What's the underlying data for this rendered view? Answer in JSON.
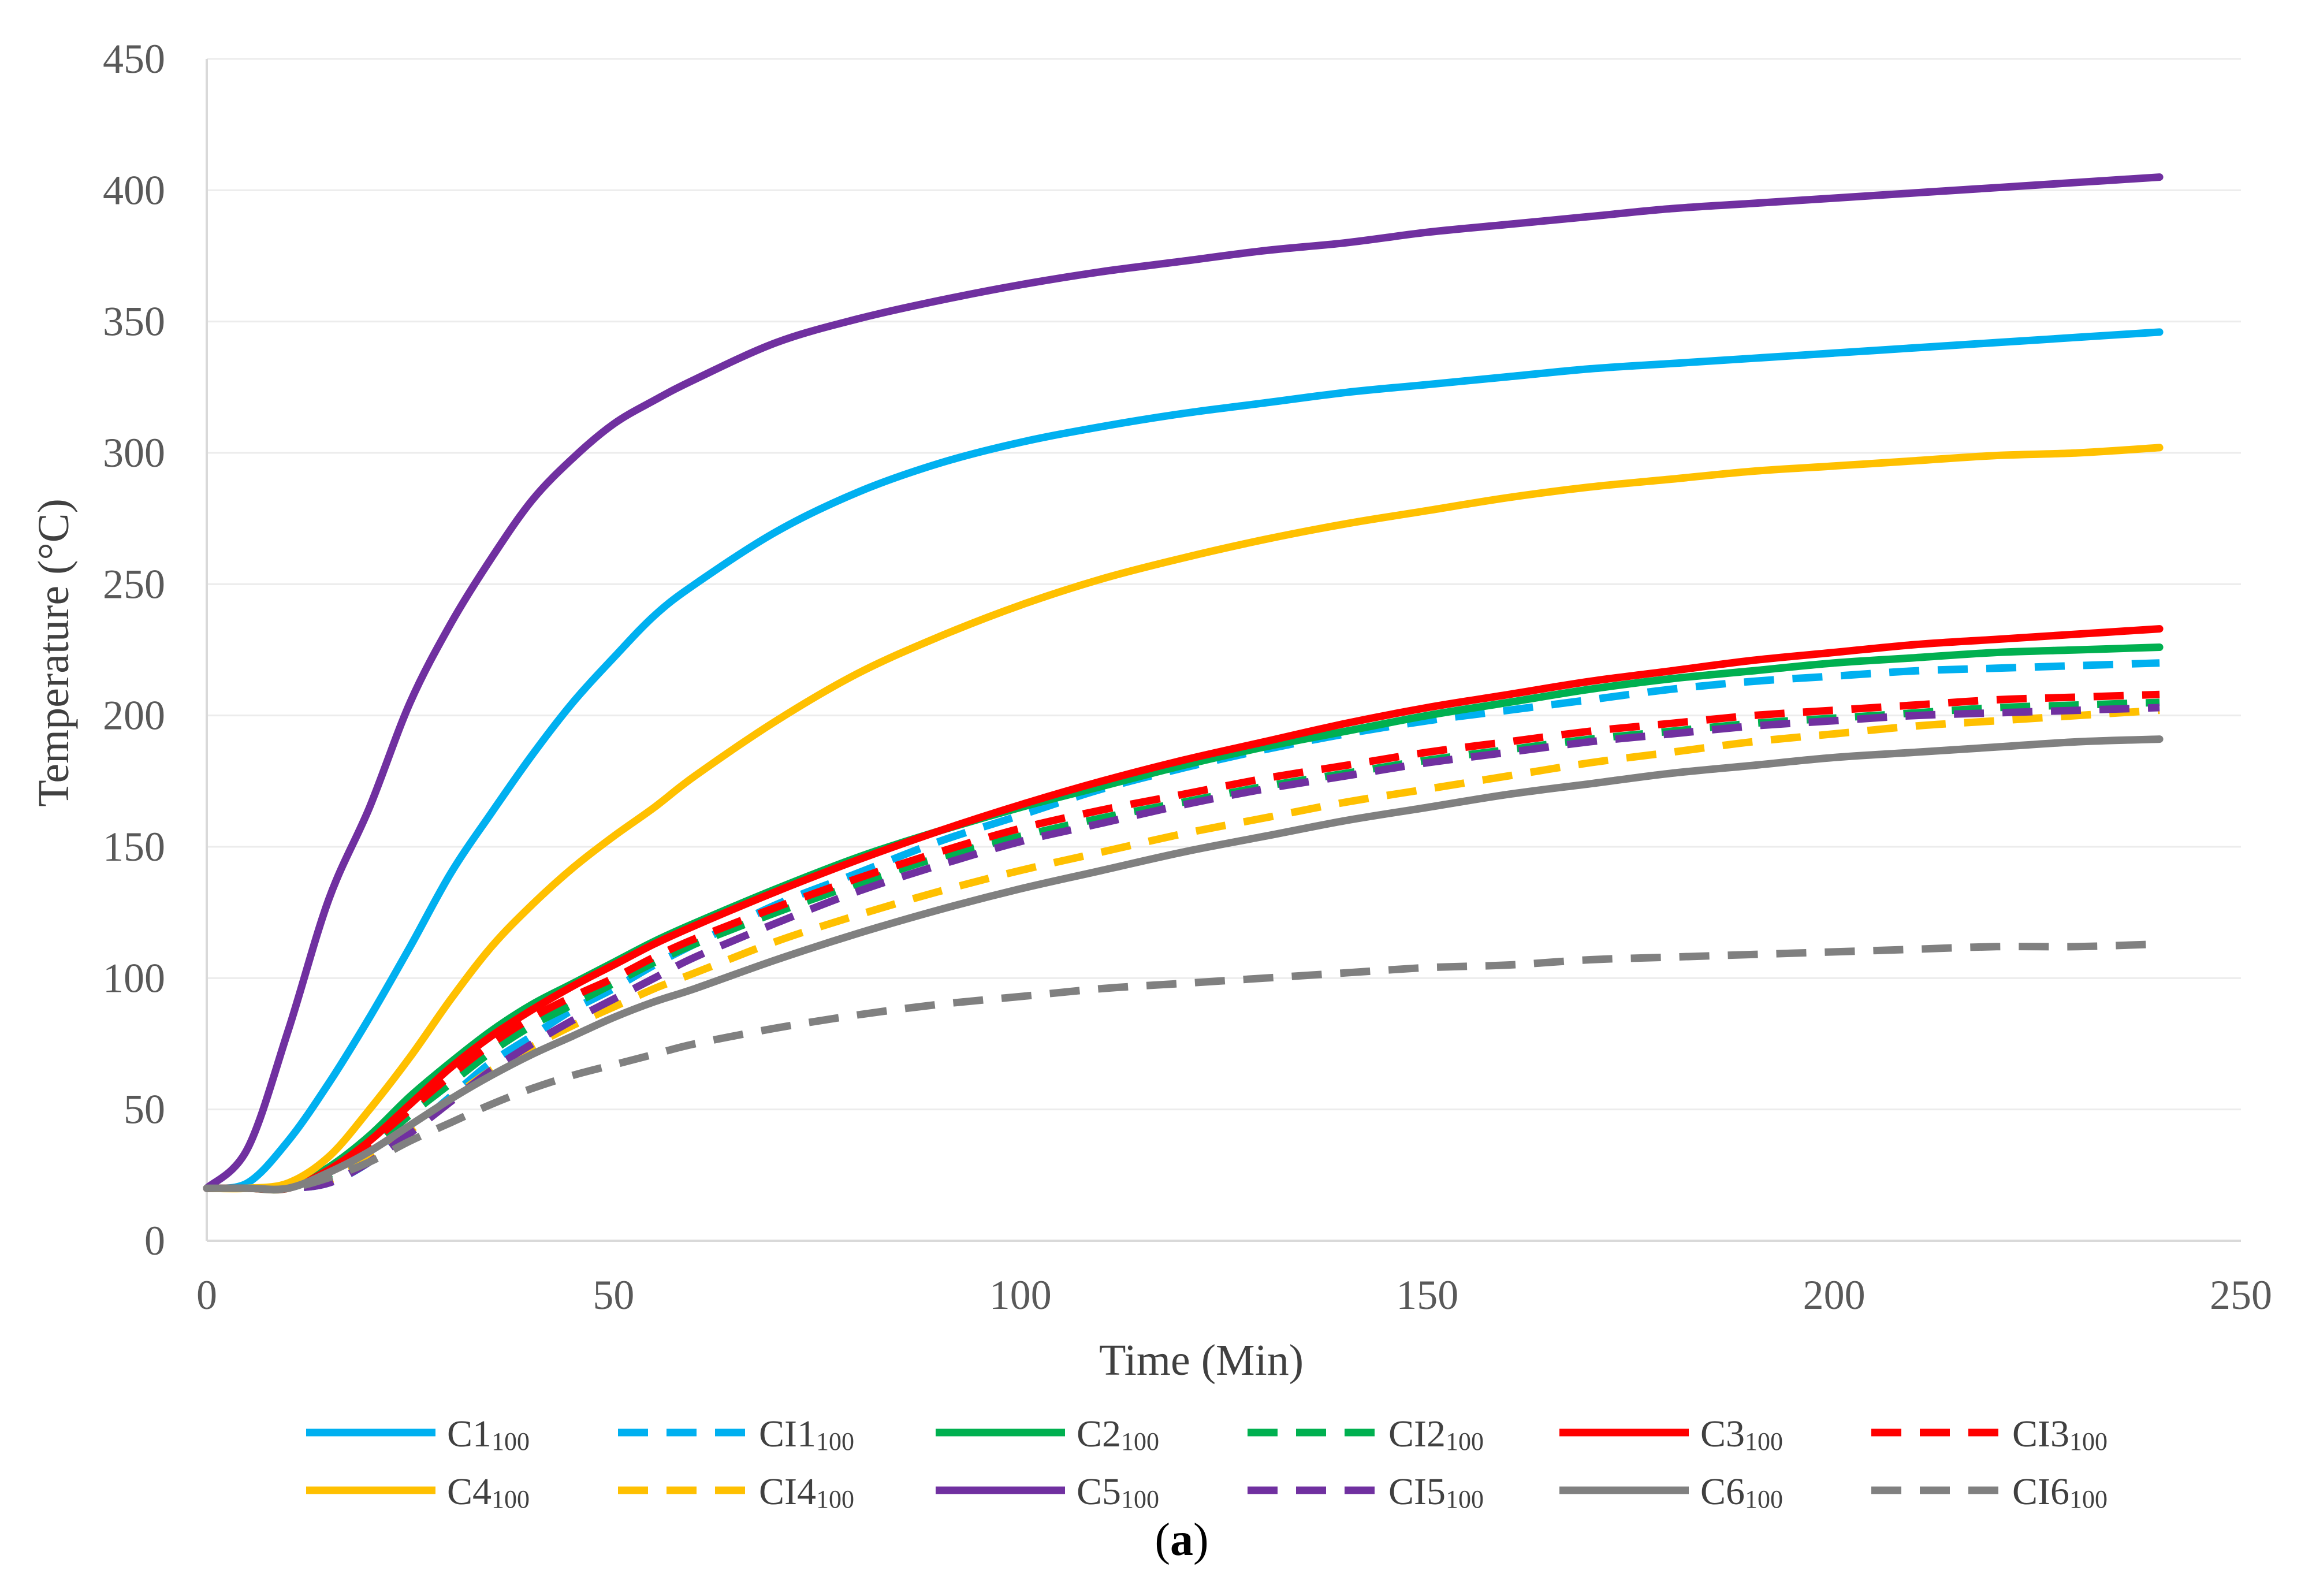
{
  "chart_data": {
    "type": "line",
    "title": "",
    "xlabel": "Time (Min)",
    "ylabel": "Temperature (°C)",
    "xlim": [
      0,
      250
    ],
    "ylim": [
      0,
      450
    ],
    "xticks": [
      0,
      50,
      100,
      150,
      200,
      250
    ],
    "yticks": [
      0,
      50,
      100,
      150,
      200,
      250,
      300,
      350,
      400,
      450
    ],
    "xtick_labels": [
      "0",
      "50",
      "100",
      "150",
      "200",
      "250"
    ],
    "ytick_labels": [
      "0",
      "50",
      "100",
      "150",
      "200",
      "250",
      "300",
      "350",
      "400",
      "450"
    ],
    "grid": true,
    "legend_position": "bottom",
    "caption": {
      "open": "(",
      "letter": "a",
      "close": ")"
    },
    "x": [
      0,
      5,
      10,
      15,
      20,
      25,
      30,
      35,
      40,
      45,
      50,
      55,
      60,
      70,
      80,
      90,
      100,
      110,
      120,
      130,
      140,
      150,
      160,
      170,
      180,
      190,
      200,
      210,
      220,
      230,
      240
    ],
    "series": [
      {
        "name": "C1",
        "sub": "100",
        "color": "#00B0F0",
        "dash": "solid",
        "values": [
          20,
          22,
          38,
          60,
          85,
          112,
          140,
          163,
          185,
          205,
          222,
          238,
          250,
          270,
          285,
          296,
          304,
          310,
          315,
          319,
          323,
          326,
          329,
          332,
          334,
          336,
          338,
          340,
          342,
          344,
          346
        ]
      },
      {
        "name": "CI1",
        "sub": "100",
        "color": "#00B0F0",
        "dash": "dashed",
        "values": [
          20,
          20,
          20,
          22,
          30,
          42,
          55,
          68,
          78,
          88,
          96,
          105,
          113,
          128,
          140,
          152,
          162,
          172,
          180,
          187,
          193,
          198,
          202,
          206,
          210,
          213,
          215,
          217,
          218,
          219,
          220
        ]
      },
      {
        "name": "C2",
        "sub": "100",
        "color": "#00B050",
        "dash": "solid",
        "values": [
          20,
          20,
          20,
          28,
          40,
          55,
          68,
          80,
          90,
          98,
          106,
          114,
          121,
          134,
          146,
          156,
          165,
          173,
          181,
          188,
          194,
          200,
          205,
          210,
          214,
          217,
          220,
          222,
          224,
          225,
          226
        ]
      },
      {
        "name": "CI2",
        "sub": "100",
        "color": "#00B050",
        "dash": "dashed",
        "values": [
          20,
          20,
          20,
          25,
          35,
          48,
          60,
          72,
          82,
          90,
          98,
          106,
          113,
          125,
          136,
          146,
          154,
          161,
          167,
          173,
          178,
          183,
          187,
          191,
          194,
          197,
          199,
          201,
          203,
          204,
          205
        ]
      },
      {
        "name": "C3",
        "sub": "100",
        "color": "#FF0000",
        "dash": "solid",
        "values": [
          20,
          20,
          20,
          27,
          38,
          52,
          66,
          78,
          88,
          97,
          105,
          113,
          120,
          133,
          145,
          156,
          166,
          175,
          183,
          190,
          197,
          203,
          208,
          213,
          217,
          221,
          224,
          227,
          229,
          231,
          233
        ]
      },
      {
        "name": "CI3",
        "sub": "100",
        "color": "#FF0000",
        "dash": "dashed",
        "values": [
          20,
          20,
          20,
          26,
          37,
          50,
          63,
          75,
          85,
          93,
          100,
          108,
          115,
          127,
          138,
          148,
          157,
          164,
          170,
          176,
          181,
          186,
          190,
          194,
          197,
          200,
          202,
          204,
          206,
          207,
          208
        ]
      },
      {
        "name": "C4",
        "sub": "100",
        "color": "#FFC000",
        "dash": "solid",
        "values": [
          20,
          20,
          22,
          32,
          50,
          70,
          92,
          112,
          128,
          142,
          154,
          165,
          177,
          198,
          216,
          230,
          242,
          252,
          260,
          267,
          273,
          278,
          283,
          287,
          290,
          293,
          295,
          297,
          299,
          300,
          302
        ]
      },
      {
        "name": "CI4",
        "sub": "100",
        "color": "#FFC000",
        "dash": "dashed",
        "values": [
          20,
          20,
          20,
          23,
          31,
          42,
          54,
          65,
          74,
          82,
          89,
          96,
          102,
          114,
          124,
          133,
          141,
          148,
          155,
          161,
          167,
          172,
          177,
          182,
          186,
          190,
          193,
          196,
          198,
          200,
          202
        ]
      },
      {
        "name": "C5",
        "sub": "100",
        "color": "#7030A0",
        "dash": "solid",
        "values": [
          20,
          35,
          80,
          130,
          165,
          205,
          235,
          260,
          282,
          298,
          311,
          320,
          328,
          342,
          351,
          358,
          364,
          369,
          373,
          377,
          380,
          384,
          387,
          390,
          393,
          395,
          397,
          399,
          401,
          403,
          405
        ]
      },
      {
        "name": "CI5",
        "sub": "100",
        "color": "#7030A0",
        "dash": "dashed",
        "values": [
          20,
          20,
          20,
          22,
          30,
          41,
          53,
          65,
          75,
          84,
          92,
          100,
          108,
          121,
          133,
          143,
          152,
          159,
          166,
          172,
          177,
          182,
          186,
          190,
          193,
          196,
          198,
          200,
          201,
          202,
          203
        ]
      },
      {
        "name": "C6",
        "sub": "100",
        "color": "#808080",
        "dash": "solid",
        "values": [
          20,
          20,
          20,
          26,
          34,
          44,
          54,
          63,
          71,
          78,
          85,
          91,
          96,
          107,
          117,
          126,
          134,
          141,
          148,
          154,
          160,
          165,
          170,
          174,
          178,
          181,
          184,
          186,
          188,
          190,
          191
        ]
      },
      {
        "name": "CI6",
        "sub": "100",
        "color": "#808080",
        "dash": "dashed",
        "values": [
          20,
          20,
          20,
          24,
          30,
          38,
          45,
          52,
          58,
          63,
          67,
          71,
          75,
          81,
          86,
          90,
          93,
          96,
          98,
          100,
          102,
          104,
          105,
          107,
          108,
          109,
          110,
          111,
          112,
          112,
          113
        ]
      }
    ]
  }
}
